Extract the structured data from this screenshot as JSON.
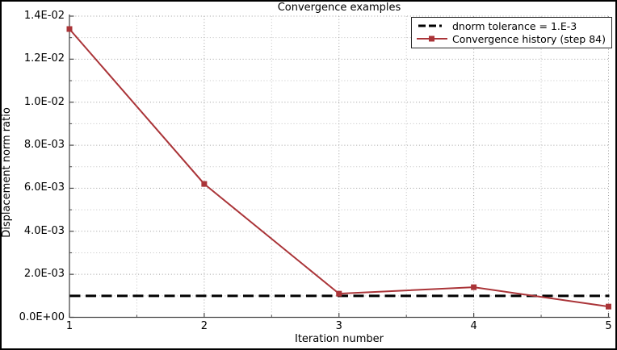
{
  "colors": {
    "background": "#ffffff",
    "frame": "#000000",
    "axis": "#4a4a4a",
    "grid_major": "#9e9e9e",
    "grid_minor": "#c2c2c2",
    "text": "#000000",
    "tolerance_line": "#000000",
    "series_line": "#aa3438"
  },
  "chart_data": {
    "type": "line",
    "title": "Convergence examples",
    "xlabel": "Iteration number",
    "ylabel": "Displacement norm ratio",
    "xlim": [
      1,
      5
    ],
    "ylim": [
      0.0,
      0.014
    ],
    "grid": {
      "visible": true,
      "style": "dotted",
      "minor_lines": true
    },
    "legend_position": "top-right",
    "x_ticks": {
      "values": [
        1,
        2,
        3,
        4,
        5
      ],
      "labels": [
        "1",
        "2",
        "3",
        "4",
        "5"
      ],
      "minor_values": [
        1.5,
        2.5,
        3.5,
        4.5
      ]
    },
    "y_ticks": {
      "values": [
        0.0,
        0.002,
        0.004,
        0.006,
        0.008,
        0.01,
        0.012,
        0.014
      ],
      "labels": [
        "0.0E+00",
        "2.0E-03",
        "4.0E-03",
        "6.0E-03",
        "8.0E-03",
        "1.0E-02",
        "1.2E-02",
        "1.4E-02"
      ],
      "minor_values": [
        0.001,
        0.003,
        0.005,
        0.007,
        0.009,
        0.011,
        0.013
      ]
    },
    "series": [
      {
        "name": "dnorm tolerance = 1.E-3",
        "type": "hline",
        "y": 0.001,
        "line_style": "dashed",
        "color": "#000000",
        "line_width": 3
      },
      {
        "name": "Convergence history (step 84)",
        "type": "line",
        "marker": "filled-square",
        "color": "#aa3438",
        "line_width": 2,
        "x": [
          1,
          2,
          3,
          4,
          5
        ],
        "y": [
          0.0134,
          0.0062,
          0.0011,
          0.0014,
          0.0005
        ]
      }
    ]
  }
}
